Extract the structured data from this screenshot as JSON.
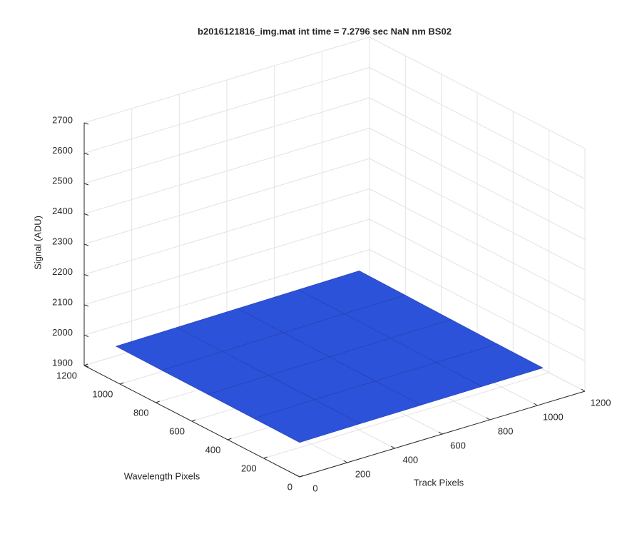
{
  "chart_data": {
    "type": "surface",
    "title": "b2016121816_img.mat int time = 7.2796 sec  NaN nm BS02",
    "xlabel": "Track Pixels",
    "ylabel": "Wavelength Pixels",
    "zlabel": "Signal (ADU)",
    "color": "#2b52d8",
    "edge_color": "#2a3fb0",
    "x": [
      1,
      256,
      512,
      768,
      1024
    ],
    "y": [
      1,
      256,
      512,
      768,
      1024
    ],
    "z": [
      [
        2013,
        2015,
        2016,
        2017,
        2018
      ],
      [
        2014,
        2016,
        2017,
        2018,
        2019
      ],
      [
        2015,
        2017,
        2018,
        2020,
        2021
      ],
      [
        2016,
        2018,
        2020,
        2022,
        2023
      ],
      [
        2017,
        2019,
        2021,
        2023,
        2025
      ]
    ],
    "xlim": [
      0,
      1200
    ],
    "ylim": [
      0,
      1200
    ],
    "zlim": [
      1900,
      2700
    ],
    "xticks": [
      0,
      200,
      400,
      600,
      800,
      1000,
      1200
    ],
    "yticks": [
      0,
      200,
      400,
      600,
      800,
      1000,
      1200
    ],
    "zticks": [
      1900,
      2000,
      2100,
      2200,
      2300,
      2400,
      2500,
      2600,
      2700
    ],
    "grid": true
  }
}
